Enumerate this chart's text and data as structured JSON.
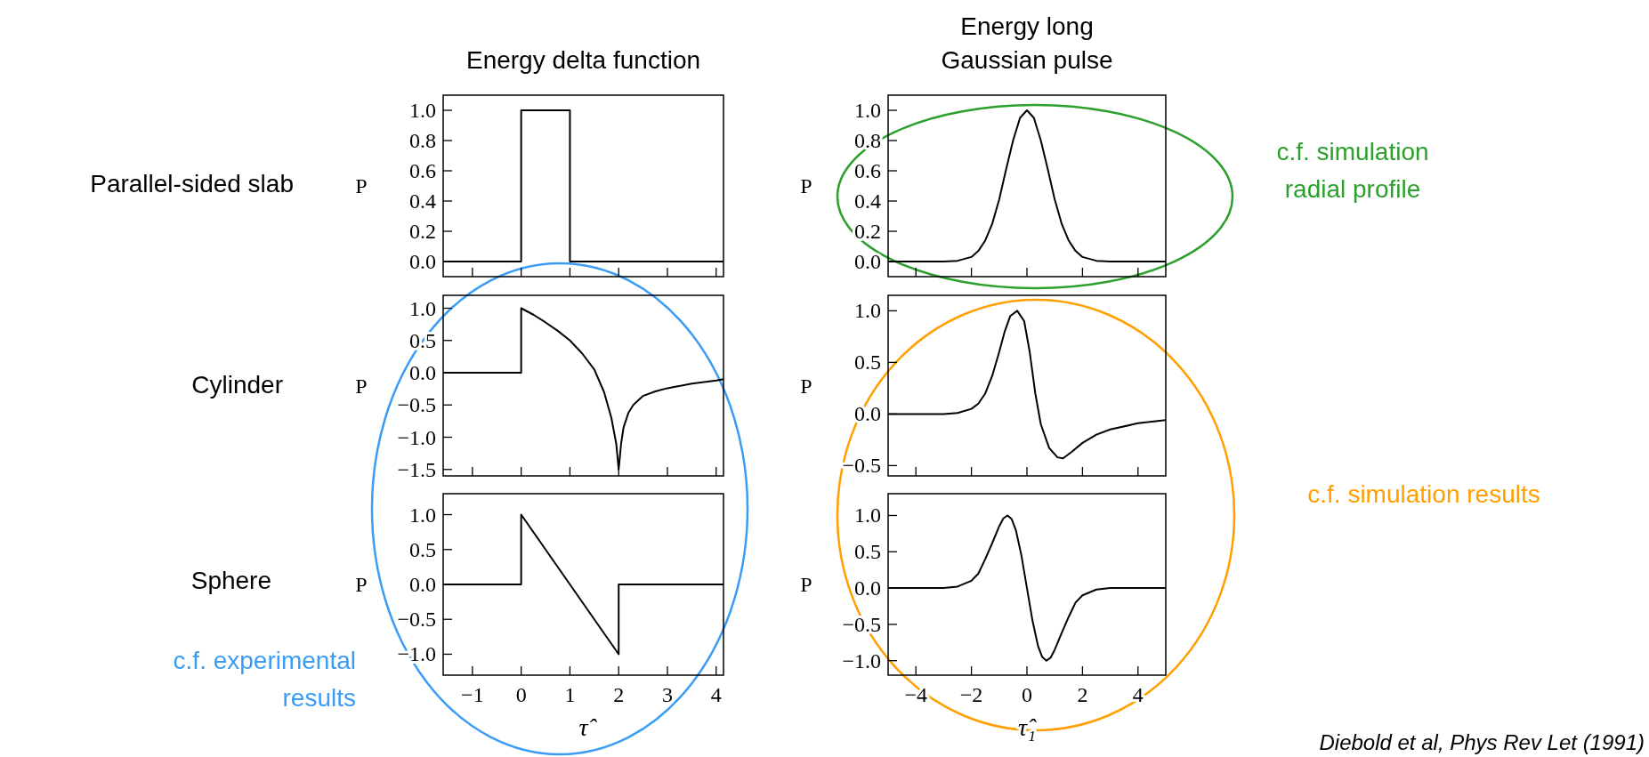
{
  "chart_data": [
    {
      "type": "line",
      "title": "Energy delta function",
      "ylabel": "P",
      "annotations": [
        "Parallel-sided slab"
      ],
      "xlim": [
        -1.6,
        4.15
      ],
      "ylim": [
        -0.1,
        1.1
      ],
      "xticks": [
        -1,
        0,
        1,
        2,
        3,
        4
      ],
      "yticks": [
        {
          "value": 0,
          "label": "0.0"
        },
        {
          "value": 0.2,
          "label": "0.2"
        },
        {
          "value": 0.4,
          "label": "0.4"
        },
        {
          "value": 0.6,
          "label": "0.6"
        },
        {
          "value": 0.8,
          "label": "0.8"
        },
        {
          "value": 1,
          "label": "1.0"
        }
      ],
      "tick_labels": "y",
      "series": [
        {
          "color": "#000000",
          "x": [
            -1.6,
            0,
            0,
            1,
            1,
            4.15
          ],
          "values": [
            0,
            0,
            1,
            1,
            0,
            0
          ]
        }
      ]
    },
    {
      "type": "line",
      "title": "Energy long Gaussian pulse",
      "ylabel": "P",
      "annotations": [
        "c.f. simulation radial profile"
      ],
      "xlim": [
        -5,
        5
      ],
      "ylim": [
        -0.1,
        1.1
      ],
      "xticks": [
        -4,
        -2,
        0,
        2,
        4
      ],
      "yticks": [
        {
          "value": 0,
          "label": "0.0"
        },
        {
          "value": 0.2,
          "label": "0.2"
        },
        {
          "value": 0.4,
          "label": "0.4"
        },
        {
          "value": 0.6,
          "label": "0.6"
        },
        {
          "value": 0.8,
          "label": "0.8"
        },
        {
          "value": 1,
          "label": "1.0"
        }
      ],
      "tick_labels": "y",
      "series": [
        {
          "color": "#000000",
          "x": [
            -5,
            -3,
            -2.5,
            -2,
            -1.75,
            -1.5,
            -1.25,
            -1,
            -0.75,
            -0.5,
            -0.25,
            0,
            0.25,
            0.5,
            0.75,
            1,
            1.25,
            1.5,
            1.75,
            2,
            2.5,
            3,
            5
          ],
          "values": [
            0,
            0,
            0.005,
            0.03,
            0.07,
            0.14,
            0.25,
            0.41,
            0.61,
            0.8,
            0.95,
            1,
            0.95,
            0.8,
            0.61,
            0.41,
            0.25,
            0.14,
            0.07,
            0.03,
            0.005,
            0,
            0
          ]
        }
      ]
    },
    {
      "type": "line",
      "ylabel": "P",
      "annotations": [
        "Cylinder"
      ],
      "xlim": [
        -1.6,
        4.15
      ],
      "ylim": [
        -1.6,
        1.2
      ],
      "xticks": [
        -1,
        0,
        1,
        2,
        3,
        4
      ],
      "yticks": [
        {
          "value": -1.5,
          "label": "−1.5"
        },
        {
          "value": -1,
          "label": "−1.0"
        },
        {
          "value": -0.5,
          "label": "−0.5"
        },
        {
          "value": 0,
          "label": "0.0"
        },
        {
          "value": 0.5,
          "label": "0.5"
        },
        {
          "value": 1,
          "label": "1.0"
        }
      ],
      "tick_labels": "y",
      "series": [
        {
          "color": "#000000",
          "x": [
            -1.6,
            0,
            0,
            0.25,
            0.5,
            0.75,
            1,
            1.25,
            1.5,
            1.7,
            1.85,
            1.95,
            2,
            2.05,
            2.1,
            2.2,
            2.3,
            2.5,
            2.75,
            3,
            3.5,
            4,
            4.15
          ],
          "values": [
            0,
            0,
            1,
            0.9,
            0.78,
            0.65,
            0.5,
            0.3,
            0.05,
            -0.3,
            -0.7,
            -1.1,
            -1.5,
            -1.1,
            -0.85,
            -0.62,
            -0.5,
            -0.36,
            -0.29,
            -0.24,
            -0.17,
            -0.12,
            -0.1
          ]
        }
      ]
    },
    {
      "type": "line",
      "ylabel": "P",
      "annotations": [
        "c.f. simulation results"
      ],
      "xlim": [
        -5,
        5
      ],
      "ylim": [
        -0.6,
        1.15
      ],
      "xticks": [
        -4,
        -2,
        0,
        2,
        4
      ],
      "yticks": [
        {
          "value": -0.5,
          "label": "−0.5"
        },
        {
          "value": 0,
          "label": "0.0"
        },
        {
          "value": 0.5,
          "label": "0.5"
        },
        {
          "value": 1,
          "label": "1.0"
        }
      ],
      "tick_labels": "y",
      "series": [
        {
          "color": "#000000",
          "x": [
            -5,
            -3,
            -2.5,
            -2,
            -1.75,
            -1.5,
            -1.25,
            -1,
            -0.8,
            -0.6,
            -0.35,
            -0.1,
            0.1,
            0.3,
            0.5,
            0.8,
            1.1,
            1.3,
            1.6,
            2,
            2.5,
            3,
            4,
            5
          ],
          "values": [
            0,
            0,
            0.01,
            0.05,
            0.1,
            0.2,
            0.37,
            0.6,
            0.8,
            0.95,
            1,
            0.9,
            0.6,
            0.2,
            -0.1,
            -0.33,
            -0.42,
            -0.43,
            -0.37,
            -0.28,
            -0.2,
            -0.15,
            -0.09,
            -0.06
          ]
        }
      ]
    },
    {
      "type": "line",
      "ylabel": "P",
      "xlabel": "τ̂",
      "annotations": [
        "Sphere",
        "c.f. experimental results"
      ],
      "xlim": [
        -1.6,
        4.15
      ],
      "ylim": [
        -1.3,
        1.3
      ],
      "xticks": [
        {
          "value": -1,
          "label": "−1"
        },
        0,
        1,
        2,
        3,
        4
      ],
      "yticks": [
        {
          "value": -1,
          "label": "−1.0"
        },
        {
          "value": -0.5,
          "label": "−0.5"
        },
        {
          "value": 0,
          "label": "0.0"
        },
        {
          "value": 0.5,
          "label": "0.5"
        },
        {
          "value": 1,
          "label": "1.0"
        }
      ],
      "series": [
        {
          "color": "#000000",
          "x": [
            -1.6,
            0,
            0,
            2,
            2,
            4.15
          ],
          "values": [
            0,
            0,
            1,
            -1,
            0,
            0
          ]
        }
      ]
    },
    {
      "type": "line",
      "ylabel": "P",
      "xlabel": "τ̂₁",
      "annotations": [
        "Diebold et al, Phys Rev Let (1991)"
      ],
      "xlim": [
        -5,
        5
      ],
      "ylim": [
        -1.2,
        1.3
      ],
      "xticks": [
        {
          "value": -4,
          "label": "−4"
        },
        {
          "value": -2,
          "label": "−2"
        },
        0,
        2,
        4
      ],
      "yticks": [
        {
          "value": -1,
          "label": "−1.0"
        },
        {
          "value": -0.5,
          "label": "−0.5"
        },
        {
          "value": 0,
          "label": "0.0"
        },
        {
          "value": 0.5,
          "label": "0.5"
        },
        {
          "value": 1,
          "label": "1.0"
        }
      ],
      "series": [
        {
          "color": "#000000",
          "x": [
            -5,
            -3,
            -2.5,
            -2,
            -1.75,
            -1.5,
            -1.25,
            -1,
            -0.85,
            -0.7,
            -0.55,
            -0.4,
            -0.2,
            0,
            0.2,
            0.4,
            0.55,
            0.7,
            0.85,
            1,
            1.25,
            1.5,
            1.75,
            2,
            2.5,
            3,
            5
          ],
          "values": [
            0,
            0,
            0.02,
            0.1,
            0.2,
            0.4,
            0.62,
            0.85,
            0.96,
            1,
            0.95,
            0.8,
            0.45,
            0,
            -0.45,
            -0.8,
            -0.95,
            -1,
            -0.96,
            -0.85,
            -0.62,
            -0.4,
            -0.2,
            -0.1,
            -0.02,
            0,
            0
          ]
        }
      ]
    }
  ]
}
